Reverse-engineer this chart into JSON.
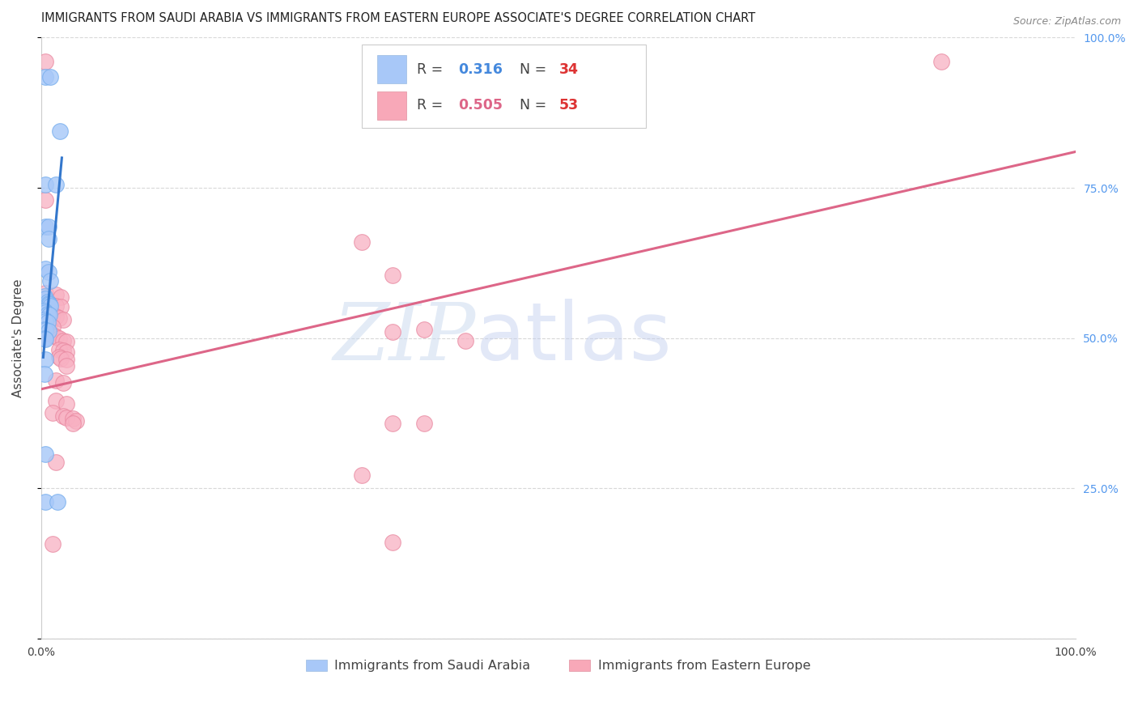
{
  "title": "IMMIGRANTS FROM SAUDI ARABIA VS IMMIGRANTS FROM EASTERN EUROPE ASSOCIATE'S DEGREE CORRELATION CHART",
  "source": "Source: ZipAtlas.com",
  "ylabel": "Associate's Degree",
  "xlim": [
    0.0,
    1.0
  ],
  "ylim": [
    0.0,
    1.0
  ],
  "legend_entries": [
    {
      "color": "#a8c8f8",
      "edge_color": "#7ab0ee",
      "R": "0.316",
      "N": "34",
      "label": "Immigrants from Saudi Arabia"
    },
    {
      "color": "#f8a8b8",
      "edge_color": "#e888a0",
      "R": "0.505",
      "N": "53",
      "label": "Immigrants from Eastern Europe"
    }
  ],
  "blue_scatter": [
    [
      0.004,
      0.935
    ],
    [
      0.009,
      0.935
    ],
    [
      0.018,
      0.845
    ],
    [
      0.004,
      0.755
    ],
    [
      0.014,
      0.755
    ],
    [
      0.004,
      0.685
    ],
    [
      0.007,
      0.685
    ],
    [
      0.007,
      0.665
    ],
    [
      0.004,
      0.615
    ],
    [
      0.007,
      0.61
    ],
    [
      0.009,
      0.595
    ],
    [
      0.003,
      0.57
    ],
    [
      0.004,
      0.565
    ],
    [
      0.006,
      0.56
    ],
    [
      0.007,
      0.558
    ],
    [
      0.008,
      0.556
    ],
    [
      0.009,
      0.554
    ],
    [
      0.003,
      0.545
    ],
    [
      0.004,
      0.542
    ],
    [
      0.006,
      0.54
    ],
    [
      0.008,
      0.538
    ],
    [
      0.003,
      0.53
    ],
    [
      0.004,
      0.528
    ],
    [
      0.006,
      0.526
    ],
    [
      0.003,
      0.515
    ],
    [
      0.004,
      0.513
    ],
    [
      0.007,
      0.511
    ],
    [
      0.003,
      0.5
    ],
    [
      0.004,
      0.498
    ],
    [
      0.004,
      0.465
    ],
    [
      0.003,
      0.44
    ],
    [
      0.004,
      0.307
    ],
    [
      0.004,
      0.228
    ],
    [
      0.016,
      0.228
    ]
  ],
  "pink_scatter": [
    [
      0.004,
      0.96
    ],
    [
      0.87,
      0.96
    ],
    [
      0.004,
      0.73
    ],
    [
      0.31,
      0.66
    ],
    [
      0.34,
      0.605
    ],
    [
      0.004,
      0.575
    ],
    [
      0.014,
      0.572
    ],
    [
      0.019,
      0.568
    ],
    [
      0.007,
      0.558
    ],
    [
      0.009,
      0.556
    ],
    [
      0.014,
      0.554
    ],
    [
      0.019,
      0.552
    ],
    [
      0.004,
      0.542
    ],
    [
      0.007,
      0.54
    ],
    [
      0.011,
      0.538
    ],
    [
      0.014,
      0.536
    ],
    [
      0.017,
      0.533
    ],
    [
      0.021,
      0.531
    ],
    [
      0.004,
      0.522
    ],
    [
      0.007,
      0.52
    ],
    [
      0.011,
      0.518
    ],
    [
      0.007,
      0.507
    ],
    [
      0.011,
      0.505
    ],
    [
      0.014,
      0.502
    ],
    [
      0.017,
      0.499
    ],
    [
      0.021,
      0.496
    ],
    [
      0.024,
      0.494
    ],
    [
      0.017,
      0.481
    ],
    [
      0.021,
      0.479
    ],
    [
      0.024,
      0.477
    ],
    [
      0.017,
      0.468
    ],
    [
      0.019,
      0.466
    ],
    [
      0.024,
      0.464
    ],
    [
      0.024,
      0.454
    ],
    [
      0.014,
      0.43
    ],
    [
      0.021,
      0.425
    ],
    [
      0.014,
      0.396
    ],
    [
      0.024,
      0.39
    ],
    [
      0.011,
      0.375
    ],
    [
      0.021,
      0.37
    ],
    [
      0.024,
      0.368
    ],
    [
      0.031,
      0.366
    ],
    [
      0.034,
      0.362
    ],
    [
      0.031,
      0.358
    ],
    [
      0.34,
      0.51
    ],
    [
      0.37,
      0.515
    ],
    [
      0.41,
      0.495
    ],
    [
      0.34,
      0.358
    ],
    [
      0.37,
      0.358
    ],
    [
      0.014,
      0.293
    ],
    [
      0.31,
      0.272
    ],
    [
      0.011,
      0.158
    ],
    [
      0.34,
      0.16
    ]
  ],
  "blue_line_x": [
    0.002,
    0.02
  ],
  "blue_line_y": [
    0.468,
    0.8
  ],
  "pink_line_x": [
    0.0,
    1.0
  ],
  "pink_line_y": [
    0.415,
    0.81
  ],
  "background_color": "#ffffff",
  "grid_color": "#d8d8d8",
  "title_fontsize": 10.5,
  "label_fontsize": 11,
  "tick_fontsize": 10,
  "right_tick_color": "#5599ee",
  "watermark_zip": "ZIP",
  "watermark_atlas": "atlas",
  "watermark_color": "#c8d8ee",
  "watermark_alpha": 0.5,
  "leg_R_color": "#4488dd",
  "leg_N_color": "#dd3333",
  "leg_text_color": "#444444"
}
